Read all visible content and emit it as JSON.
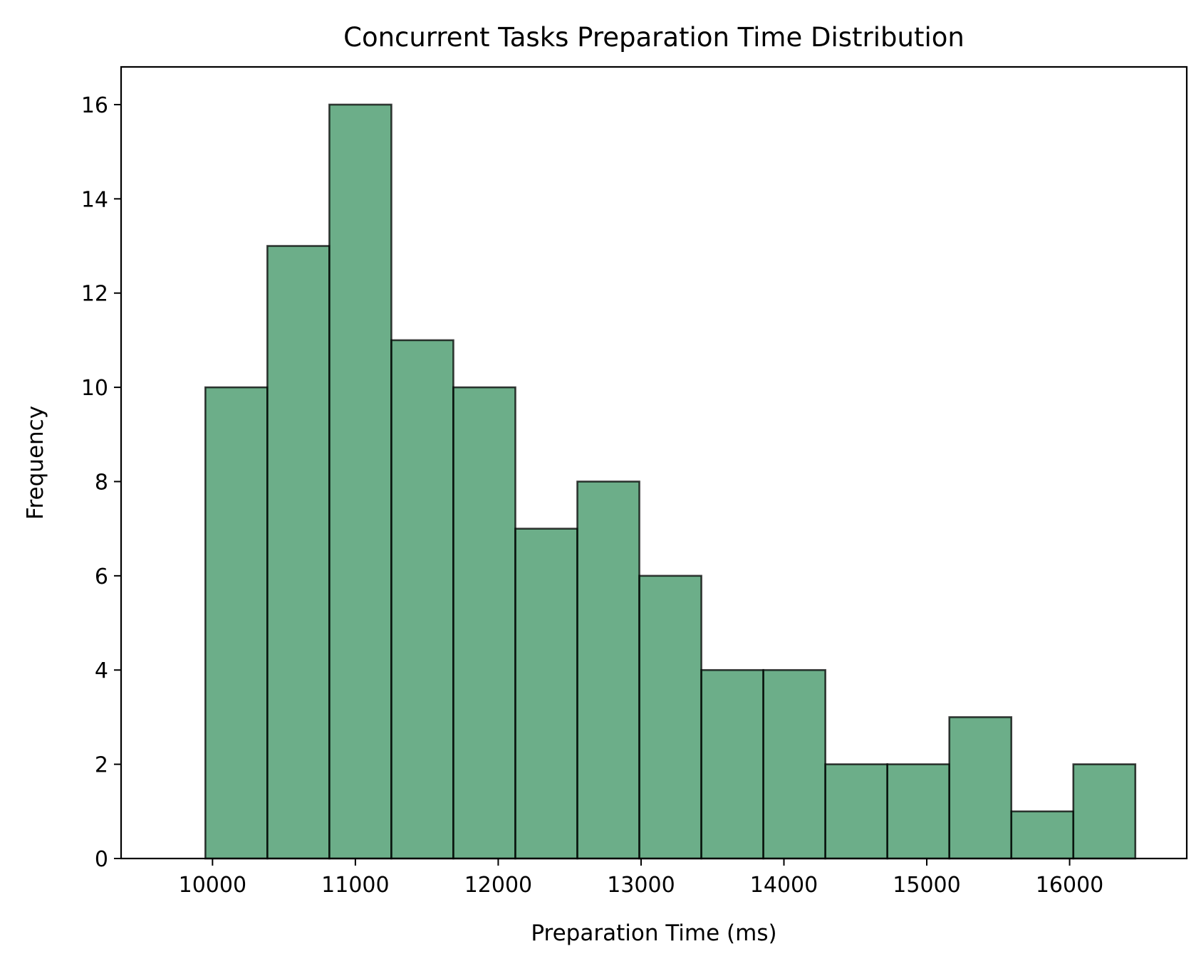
{
  "chart_data": {
    "type": "bar",
    "title": "Concurrent Tasks Preparation Time Distribution",
    "xlabel": "Preparation Time (ms)",
    "ylabel": "Frequency",
    "xlim": [
      9360,
      16820
    ],
    "ylim": [
      0,
      16.8
    ],
    "x_ticks": [
      10000,
      11000,
      12000,
      13000,
      14000,
      15000,
      16000
    ],
    "y_ticks": [
      0,
      2,
      4,
      6,
      8,
      10,
      12,
      14,
      16
    ],
    "bin_edges": [
      9950,
      10384,
      10818,
      11252,
      11686,
      12120,
      12554,
      12988,
      13422,
      13856,
      14290,
      14724,
      15158,
      15592,
      16026,
      16460
    ],
    "values": [
      10,
      13,
      16,
      11,
      10,
      7,
      8,
      6,
      4,
      4,
      2,
      2,
      3,
      1,
      2
    ],
    "bar_color": "#2e8b57",
    "bar_alpha": 0.7,
    "edge_color": "#000000",
    "grid": false
  }
}
